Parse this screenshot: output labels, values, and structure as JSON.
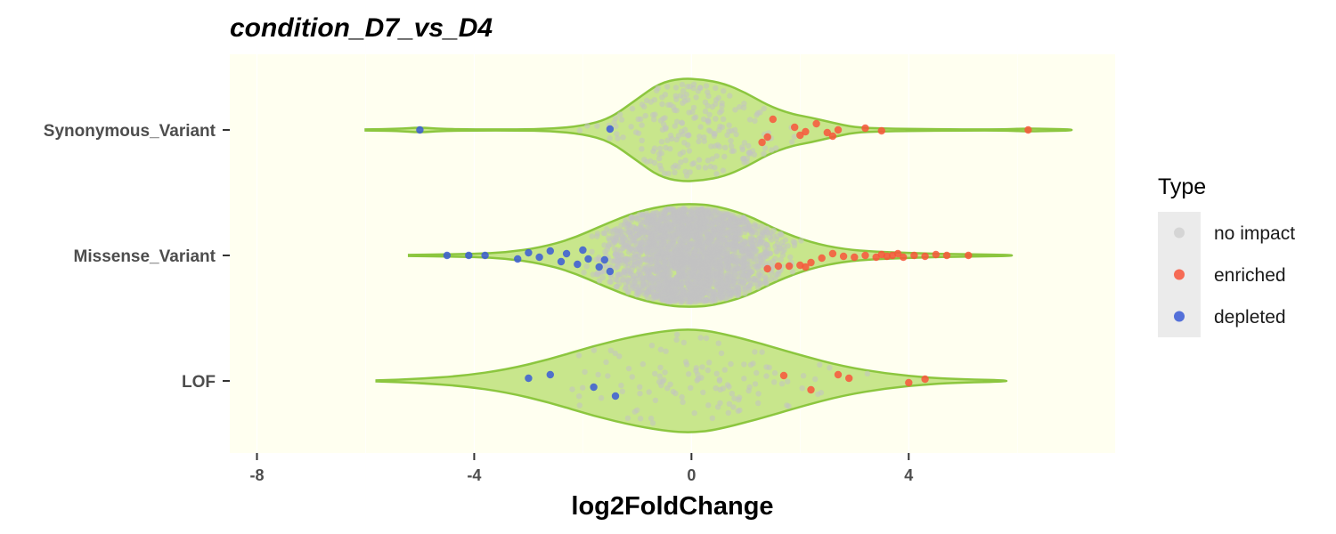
{
  "chart_data": {
    "type": "violin",
    "title": "condition_D7_vs_D4",
    "xlabel": "log2FoldChange",
    "ylabel": "",
    "xlim": [
      -8.5,
      7.8
    ],
    "x_ticks": [
      -8,
      -4,
      0,
      4
    ],
    "x_tick_labels": [
      "-8",
      "-4",
      "0",
      "4"
    ],
    "categories": [
      "Synonymous_Variant",
      "Missense_Variant",
      "LOF"
    ],
    "colors": {
      "panel_background": "#fffff0",
      "violin_fill": "#c8e68c",
      "violin_outline": "#8cc63f",
      "no_impact": "#c3c3c3",
      "enriched": "#f8553b",
      "depleted": "#3a5bd6",
      "legend_key_background": "#ebebeb"
    },
    "legend": {
      "title": "Type",
      "position": "right",
      "items": [
        {
          "label": "no impact",
          "key": "no_impact"
        },
        {
          "label": "enriched",
          "key": "enriched"
        },
        {
          "label": "depleted",
          "key": "depleted"
        }
      ]
    },
    "violins": [
      {
        "category": "Synonymous_Variant",
        "range": [
          -6.0,
          7.0
        ],
        "density": [
          [
            -6.0,
            0.01
          ],
          [
            -5.4,
            0.02
          ],
          [
            -5.0,
            0.05
          ],
          [
            -4.6,
            0.02
          ],
          [
            -4.0,
            0.01
          ],
          [
            -3.2,
            0.01
          ],
          [
            -2.6,
            0.02
          ],
          [
            -2.0,
            0.08
          ],
          [
            -1.5,
            0.22
          ],
          [
            -1.0,
            0.6
          ],
          [
            -0.6,
            0.9
          ],
          [
            -0.2,
            1.0
          ],
          [
            0.2,
            0.98
          ],
          [
            0.6,
            0.9
          ],
          [
            1.0,
            0.72
          ],
          [
            1.4,
            0.48
          ],
          [
            1.8,
            0.32
          ],
          [
            2.2,
            0.24
          ],
          [
            2.6,
            0.14
          ],
          [
            3.0,
            0.05
          ],
          [
            3.5,
            0.03
          ],
          [
            4.0,
            0.02
          ],
          [
            5.0,
            0.01
          ],
          [
            5.8,
            0.01
          ],
          [
            6.2,
            0.03
          ],
          [
            6.6,
            0.02
          ],
          [
            7.0,
            0.01
          ]
        ]
      },
      {
        "category": "Missense_Variant",
        "range": [
          -5.2,
          5.9
        ],
        "density": [
          [
            -5.2,
            0.01
          ],
          [
            -4.6,
            0.02
          ],
          [
            -4.0,
            0.03
          ],
          [
            -3.4,
            0.06
          ],
          [
            -2.8,
            0.15
          ],
          [
            -2.2,
            0.32
          ],
          [
            -1.6,
            0.6
          ],
          [
            -1.0,
            0.85
          ],
          [
            -0.4,
            0.98
          ],
          [
            0.0,
            1.0
          ],
          [
            0.4,
            0.97
          ],
          [
            1.0,
            0.8
          ],
          [
            1.6,
            0.48
          ],
          [
            2.2,
            0.25
          ],
          [
            2.8,
            0.12
          ],
          [
            3.4,
            0.07
          ],
          [
            4.0,
            0.05
          ],
          [
            4.6,
            0.03
          ],
          [
            5.2,
            0.02
          ],
          [
            5.9,
            0.01
          ]
        ]
      },
      {
        "category": "LOF",
        "range": [
          -5.8,
          5.8
        ],
        "density": [
          [
            -5.8,
            0.01
          ],
          [
            -5.0,
            0.04
          ],
          [
            -4.2,
            0.1
          ],
          [
            -3.4,
            0.22
          ],
          [
            -2.6,
            0.42
          ],
          [
            -1.8,
            0.68
          ],
          [
            -1.0,
            0.88
          ],
          [
            -0.4,
            0.98
          ],
          [
            0.0,
            1.0
          ],
          [
            0.4,
            0.96
          ],
          [
            1.2,
            0.75
          ],
          [
            2.0,
            0.5
          ],
          [
            2.8,
            0.28
          ],
          [
            3.6,
            0.14
          ],
          [
            4.4,
            0.06
          ],
          [
            5.0,
            0.03
          ],
          [
            5.8,
            0.01
          ]
        ]
      }
    ],
    "points": {
      "Synonymous_Variant": {
        "enriched": [
          [
            1.3,
            0.14
          ],
          [
            1.4,
            0.08
          ],
          [
            1.5,
            -0.12
          ],
          [
            1.9,
            -0.03
          ],
          [
            2.0,
            0.06
          ],
          [
            2.1,
            0.02
          ],
          [
            2.3,
            -0.07
          ],
          [
            2.5,
            0.03
          ],
          [
            2.6,
            0.07
          ],
          [
            2.7,
            0.0
          ],
          [
            3.2,
            -0.02
          ],
          [
            3.5,
            0.01
          ],
          [
            6.2,
            0.0
          ]
        ],
        "depleted": [
          [
            -5.0,
            0.0
          ],
          [
            -1.5,
            -0.01
          ]
        ]
      },
      "Missense_Variant": {
        "enriched": [
          [
            1.4,
            0.15
          ],
          [
            1.6,
            0.12
          ],
          [
            1.8,
            0.12
          ],
          [
            2.0,
            0.11
          ],
          [
            2.1,
            0.13
          ],
          [
            2.2,
            0.08
          ],
          [
            2.4,
            0.03
          ],
          [
            2.6,
            -0.02
          ],
          [
            2.8,
            0.01
          ],
          [
            3.0,
            0.02
          ],
          [
            3.2,
            0.0
          ],
          [
            3.4,
            0.02
          ],
          [
            3.5,
            -0.01
          ],
          [
            3.6,
            0.01
          ],
          [
            3.7,
            0.0
          ],
          [
            3.8,
            -0.02
          ],
          [
            3.9,
            0.02
          ],
          [
            4.1,
            0.0
          ],
          [
            4.3,
            0.01
          ],
          [
            4.5,
            -0.01
          ],
          [
            4.7,
            0.0
          ],
          [
            5.1,
            0.0
          ]
        ],
        "depleted": [
          [
            -4.5,
            0.0
          ],
          [
            -4.1,
            0.0
          ],
          [
            -3.8,
            0.0
          ],
          [
            -3.2,
            0.04
          ],
          [
            -3.0,
            -0.03
          ],
          [
            -2.8,
            0.02
          ],
          [
            -2.6,
            -0.05
          ],
          [
            -2.4,
            0.07
          ],
          [
            -2.3,
            -0.02
          ],
          [
            -2.1,
            0.1
          ],
          [
            -2.0,
            -0.06
          ],
          [
            -1.9,
            0.04
          ],
          [
            -1.7,
            0.13
          ],
          [
            -1.6,
            0.05
          ],
          [
            -1.5,
            0.18
          ]
        ]
      },
      "LOF": {
        "enriched": [
          [
            1.7,
            -0.06
          ],
          [
            2.2,
            0.1
          ],
          [
            2.7,
            -0.07
          ],
          [
            2.9,
            -0.03
          ],
          [
            4.0,
            0.02
          ],
          [
            4.3,
            -0.02
          ]
        ],
        "depleted": [
          [
            -3.0,
            -0.03
          ],
          [
            -2.6,
            -0.07
          ],
          [
            -1.8,
            0.07
          ],
          [
            -1.4,
            0.17
          ]
        ]
      }
    }
  }
}
